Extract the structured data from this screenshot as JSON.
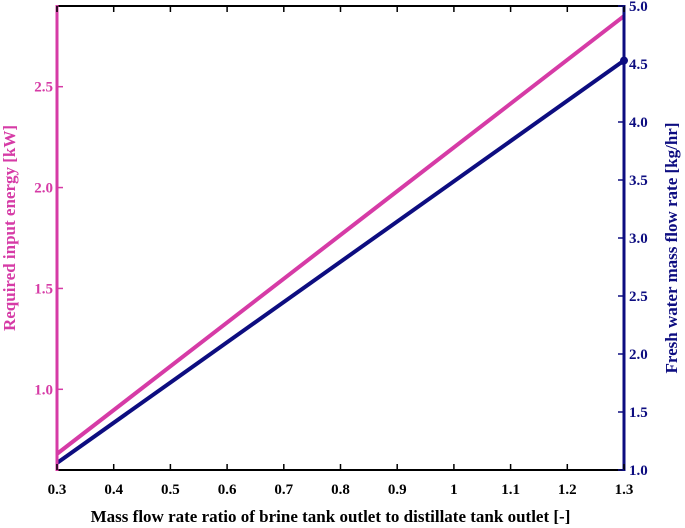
{
  "chart_data": {
    "type": "line",
    "xlabel": "Mass flow rate ratio of brine tank outlet to distillate tank outlet [-]",
    "ylabel_left": "Required input energy [kW]",
    "ylabel_right": "Fresh water mass flow rate [kg/hr]",
    "xlim": [
      0.3,
      1.3
    ],
    "ylim_left": [
      0.6,
      2.9
    ],
    "ylim_right": [
      1.0,
      5.0
    ],
    "x_ticks": [
      0.3,
      0.4,
      0.5,
      0.6,
      0.7,
      0.8,
      0.9,
      1,
      1.1,
      1.2,
      1.3
    ],
    "x_tick_labels": [
      "0.3",
      "0.4",
      "0.5",
      "0.6",
      "0.7",
      "0.8",
      "0.9",
      "1",
      "1.1",
      "1.2",
      "1.3"
    ],
    "y_left_ticks": [
      1.0,
      1.5,
      2.0,
      2.5
    ],
    "y_left_tick_labels": [
      "1.0",
      "1.5",
      "2.0",
      "2.5"
    ],
    "y_right_ticks": [
      1.0,
      1.5,
      2.0,
      2.5,
      3.0,
      3.5,
      4.0,
      4.5,
      5.0
    ],
    "y_right_tick_labels": [
      "1.0",
      "1.5",
      "2.0",
      "2.5",
      "3.0",
      "3.5",
      "4.0",
      "4.5",
      "5.0"
    ],
    "grid": false,
    "series": [
      {
        "axis": "left",
        "color": "#d63ba6",
        "x": [
          0.3,
          1.3
        ],
        "y": [
          0.68,
          2.85
        ]
      },
      {
        "axis": "right",
        "color": "#0d0d80",
        "x": [
          0.3,
          1.3
        ],
        "y": [
          1.06,
          4.53
        ]
      }
    ],
    "colors": {
      "left_axis": "#d63ba6",
      "right_axis": "#0d0d80",
      "bottom_axis": "#000000"
    }
  }
}
